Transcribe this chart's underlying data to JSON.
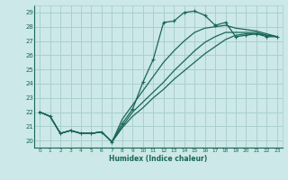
{
  "title": "",
  "xlabel": "Humidex (Indice chaleur)",
  "xlim": [
    -0.5,
    23.5
  ],
  "ylim": [
    19.5,
    29.5
  ],
  "xticks": [
    0,
    1,
    2,
    3,
    4,
    5,
    6,
    7,
    8,
    9,
    10,
    11,
    12,
    13,
    14,
    15,
    16,
    17,
    18,
    19,
    20,
    21,
    22,
    23
  ],
  "yticks": [
    20,
    21,
    22,
    23,
    24,
    25,
    26,
    27,
    28,
    29
  ],
  "bg_color": "#cce8e8",
  "grid_color": "#aacfcf",
  "line_color": "#1a6655",
  "lines": [
    {
      "y": [
        22.0,
        21.7,
        20.5,
        20.7,
        20.5,
        20.5,
        20.6,
        19.9,
        21.2,
        22.2,
        24.1,
        25.7,
        28.3,
        28.4,
        29.0,
        29.1,
        28.8,
        28.1,
        28.3,
        27.3,
        27.4,
        27.5,
        27.3,
        27.3
      ],
      "marker": true
    },
    {
      "y": [
        22.0,
        21.7,
        20.5,
        20.7,
        20.5,
        20.5,
        20.6,
        19.9,
        21.5,
        22.5,
        23.5,
        24.5,
        25.5,
        26.3,
        27.0,
        27.6,
        27.9,
        28.0,
        28.1,
        27.9,
        27.8,
        27.7,
        27.5,
        27.3
      ],
      "marker": false
    },
    {
      "y": [
        22.0,
        21.7,
        20.5,
        20.7,
        20.5,
        20.5,
        20.6,
        19.9,
        21.0,
        22.0,
        22.7,
        23.4,
        24.1,
        24.9,
        25.6,
        26.3,
        26.9,
        27.3,
        27.6,
        27.6,
        27.6,
        27.6,
        27.4,
        27.3
      ],
      "marker": false
    },
    {
      "y": [
        22.0,
        21.7,
        20.5,
        20.7,
        20.5,
        20.5,
        20.6,
        19.9,
        20.9,
        21.7,
        22.3,
        23.0,
        23.6,
        24.3,
        24.9,
        25.5,
        26.1,
        26.6,
        27.1,
        27.4,
        27.5,
        27.5,
        27.4,
        27.3
      ],
      "marker": false
    }
  ]
}
